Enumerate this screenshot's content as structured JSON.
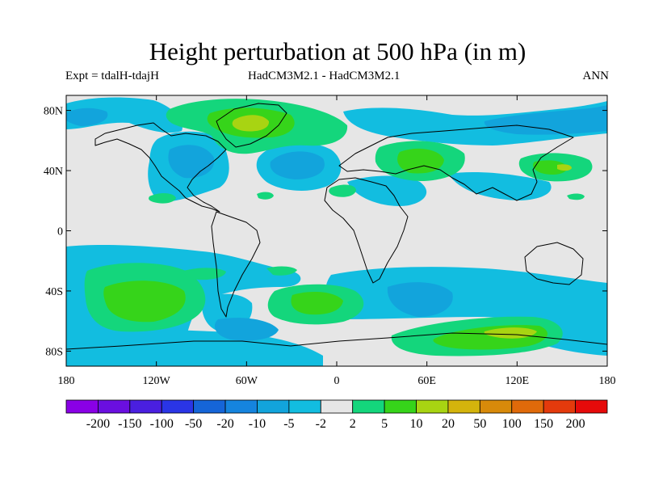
{
  "title": "Height perturbation at 500 hPa (in m)",
  "subtitle_left": "Expt = tdalH-tdajH",
  "subtitle_center": "HadCM3M2.1 - HadCM3M2.1",
  "subtitle_right": "ANN",
  "map": {
    "projection": "equirectangular",
    "lon_range": [
      -180,
      180
    ],
    "lat_range": [
      -90,
      90
    ],
    "background_color": "#e6e6e6",
    "lat_ticks": [
      {
        "lat": 80,
        "label": "80N"
      },
      {
        "lat": 40,
        "label": "40N"
      },
      {
        "lat": 0,
        "label": "0"
      },
      {
        "lat": -40,
        "label": "40S"
      },
      {
        "lat": -80,
        "label": "80S"
      }
    ],
    "lon_ticks": [
      {
        "lon": -180,
        "label": "180"
      },
      {
        "lon": -120,
        "label": "120W"
      },
      {
        "lon": -60,
        "label": "60W"
      },
      {
        "lon": 0,
        "label": "0"
      },
      {
        "lon": 60,
        "label": "60E"
      },
      {
        "lon": 120,
        "label": "120E"
      },
      {
        "lon": 180,
        "label": "180"
      }
    ]
  },
  "colorbar": {
    "colors": [
      "#8a00e6",
      "#6a0fe0",
      "#4a1fe0",
      "#2a35e6",
      "#1565d8",
      "#1584de",
      "#12a4dc",
      "#12bde0",
      "#e6e6e6",
      "#14d67c",
      "#36d41a",
      "#a8d412",
      "#d4b40c",
      "#d88a0a",
      "#e06a0a",
      "#e43a0c",
      "#e60a0a"
    ],
    "labels": [
      "-200",
      "-150",
      "-100",
      "-50",
      "-20",
      "-10",
      "-5",
      "-2",
      "2",
      "5",
      "10",
      "20",
      "50",
      "100",
      "150",
      "200"
    ]
  }
}
